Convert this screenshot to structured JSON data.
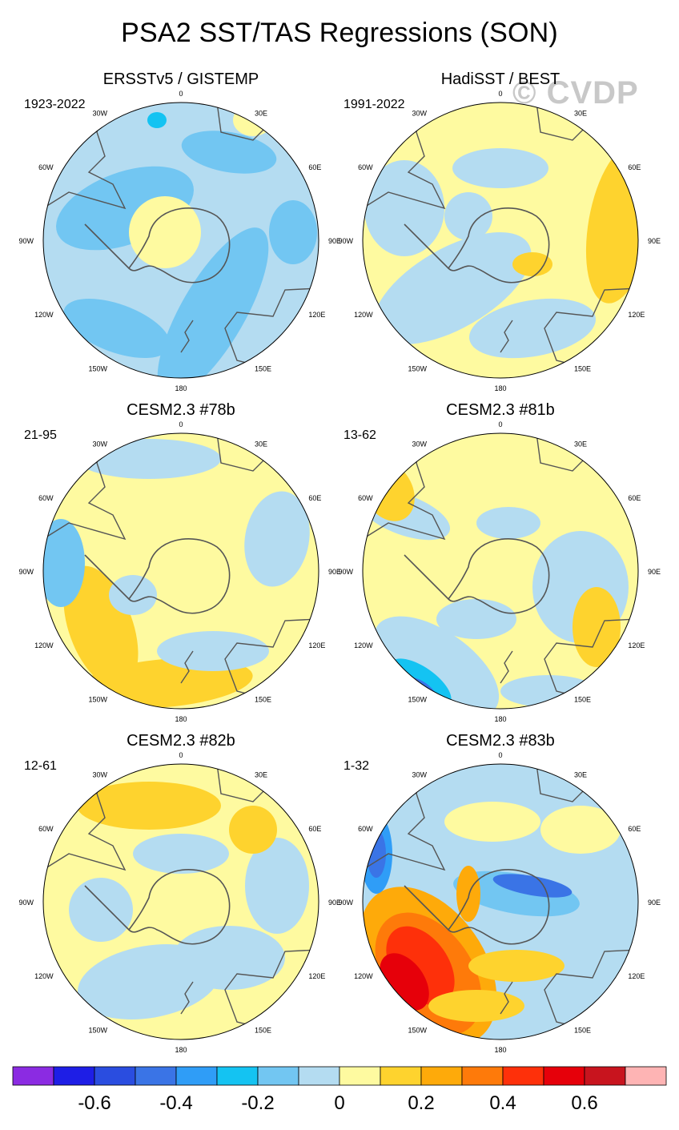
{
  "title": "PSA2 SST/TAS Regressions (SON)",
  "watermark": "© CVDP",
  "lon_labels": [
    "0",
    "30E",
    "60E",
    "90E",
    "120E",
    "150E",
    "180",
    "150W",
    "120W",
    "90W",
    "60W",
    "30W"
  ],
  "panels": [
    {
      "title": "ERSSTv5 / GISTEMP",
      "period": "1923-2022",
      "pattern": "obs1"
    },
    {
      "title": "HadiSST / BEST",
      "period": "1991-2022",
      "pattern": "obs2"
    },
    {
      "title": "CESM2.3 #78b",
      "period": "21-95",
      "pattern": "m78"
    },
    {
      "title": "CESM2.3 #81b",
      "period": "13-62",
      "pattern": "m81"
    },
    {
      "title": "CESM2.3 #82b",
      "period": "12-61",
      "pattern": "m82"
    },
    {
      "title": "CESM2.3 #83b",
      "period": "1-32",
      "pattern": "m83"
    }
  ],
  "colorbar": {
    "colors": [
      "#8b2be2",
      "#1e1ee6",
      "#2a4de0",
      "#3a74e6",
      "#2f9df7",
      "#14c3f2",
      "#72c6f2",
      "#b4dcf1",
      "#fefaa0",
      "#fed32e",
      "#feaa0a",
      "#fe7a0a",
      "#fe300a",
      "#e6000a",
      "#c8141e",
      "#feb4b4"
    ],
    "tick_labels": [
      "-0.6",
      "-0.4",
      "-0.2",
      "0",
      "0.2",
      "0.4",
      "0.6"
    ]
  }
}
